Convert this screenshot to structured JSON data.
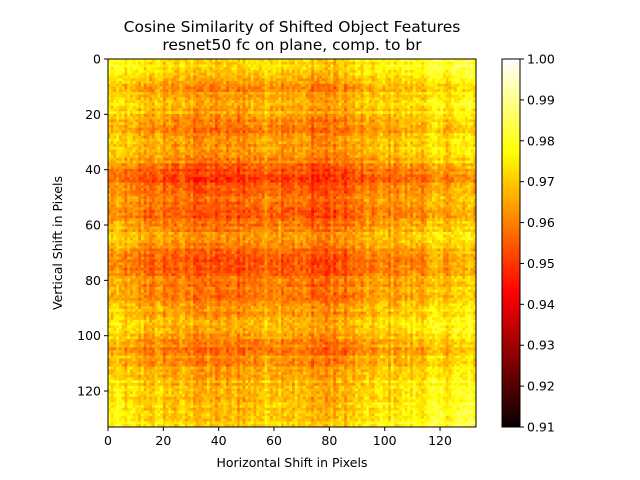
{
  "chart_data": {
    "type": "heatmap",
    "title": "Cosine Similarity of Shifted Object Features",
    "subtitle": "resnet50 fc on plane, comp. to br",
    "xlabel": "Horizontal Shift in Pixels",
    "ylabel": "Vertical Shift in Pixels",
    "x_range": [
      0,
      133
    ],
    "y_range": [
      0,
      133
    ],
    "x_ticks": [
      0,
      20,
      40,
      60,
      80,
      100,
      120
    ],
    "y_ticks": [
      0,
      20,
      40,
      60,
      80,
      100,
      120
    ],
    "colorbar": {
      "colormap": "hot",
      "range": [
        0.91,
        1.0
      ],
      "ticks": [
        "0.91",
        "0.92",
        "0.93",
        "0.94",
        "0.95",
        "0.96",
        "0.97",
        "0.98",
        "0.99",
        "1.00"
      ]
    },
    "grid": false,
    "row_profile": {
      "rows": [
        0,
        5,
        10,
        15,
        20,
        25,
        30,
        35,
        40,
        45,
        50,
        55,
        60,
        65,
        70,
        75,
        80,
        85,
        90,
        95,
        100,
        105,
        110,
        115,
        120,
        125,
        130,
        133
      ],
      "mean_similarity": [
        0.976,
        0.972,
        0.966,
        0.972,
        0.968,
        0.963,
        0.969,
        0.966,
        0.957,
        0.955,
        0.962,
        0.958,
        0.963,
        0.966,
        0.959,
        0.958,
        0.963,
        0.962,
        0.966,
        0.97,
        0.968,
        0.962,
        0.966,
        0.97,
        0.971,
        0.973,
        0.975,
        0.975
      ]
    },
    "column_profile": {
      "cols": [
        0,
        10,
        20,
        30,
        40,
        50,
        60,
        70,
        80,
        90,
        100,
        110,
        120,
        133
      ],
      "offset": [
        0.004,
        0.0,
        -0.002,
        -0.004,
        -0.006,
        -0.004,
        0.0,
        -0.004,
        -0.007,
        -0.002,
        0.002,
        0.003,
        0.006,
        0.008
      ]
    }
  }
}
